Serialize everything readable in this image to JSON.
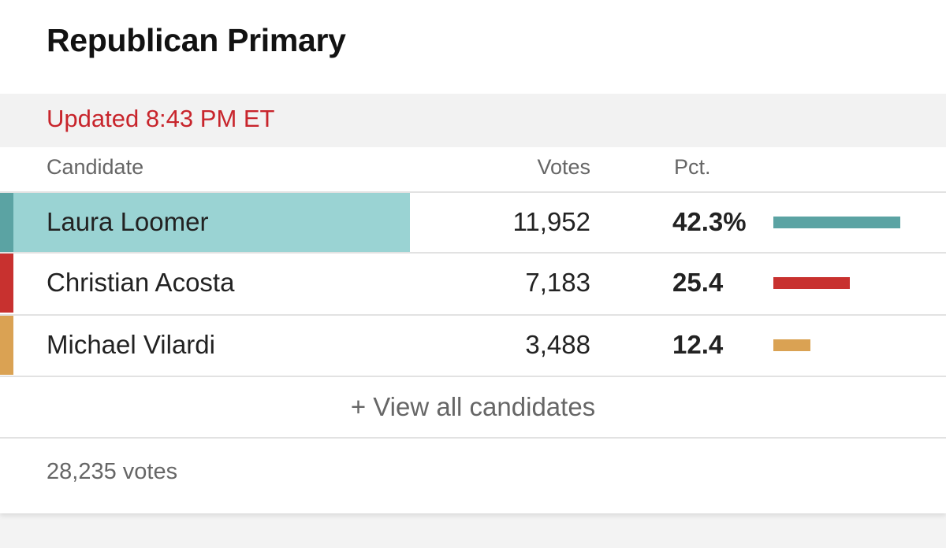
{
  "header": {
    "title": "Republican Primary",
    "updated": "Updated 8:43 PM ET"
  },
  "table": {
    "columns": {
      "candidate": "Candidate",
      "votes": "Votes",
      "pct": "Pct."
    },
    "rows": [
      {
        "name": "Laura Loomer",
        "votes": "11,952",
        "pct": "42.3%",
        "pct_value": 42.3,
        "color": "#5ba3a3",
        "winner": true
      },
      {
        "name": "Christian Acosta",
        "votes": "7,183",
        "pct": "25.4",
        "pct_value": 25.4,
        "color": "#c8312f",
        "winner": false
      },
      {
        "name": "Michael Vilardi",
        "votes": "3,488",
        "pct": "12.4",
        "pct_value": 12.4,
        "color": "#daa253",
        "winner": false
      }
    ]
  },
  "footer": {
    "view_all": "+ View all candidates",
    "total_votes": "28,235 votes"
  },
  "colors": {
    "updated_red": "#c8252c",
    "winner_highlight": "#9ad3d3"
  }
}
